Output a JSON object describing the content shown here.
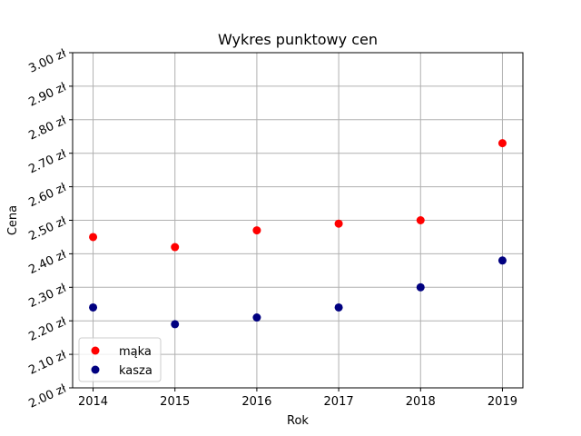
{
  "chart_data": {
    "type": "scatter",
    "title": "Wykres punktowy cen",
    "xlabel": "Rok",
    "ylabel": "Cena",
    "x": [
      2014,
      2015,
      2016,
      2017,
      2018,
      2019
    ],
    "series": [
      {
        "name": "mąka",
        "color": "#ff0000",
        "values": [
          2.45,
          2.42,
          2.47,
          2.49,
          2.5,
          2.73
        ]
      },
      {
        "name": "kasza",
        "color": "#000080",
        "values": [
          2.24,
          2.19,
          2.21,
          2.24,
          2.3,
          2.38
        ]
      }
    ],
    "xticks": [
      "2014",
      "2015",
      "2016",
      "2017",
      "2018",
      "2019"
    ],
    "yticks": [
      "2.00 zł",
      "2.10 zł",
      "2.20 zł",
      "2.30 zł",
      "2.40 zł",
      "2.50 zł",
      "2.60 zł",
      "2.70 zł",
      "2.80 zł",
      "2.90 zł",
      "3.00 zł"
    ],
    "ylim": [
      2.0,
      3.0
    ],
    "xlim": [
      2013.75,
      2019.25
    ],
    "grid": true,
    "legend_position": "lower-left",
    "ytick_rotation_deg": 25
  }
}
